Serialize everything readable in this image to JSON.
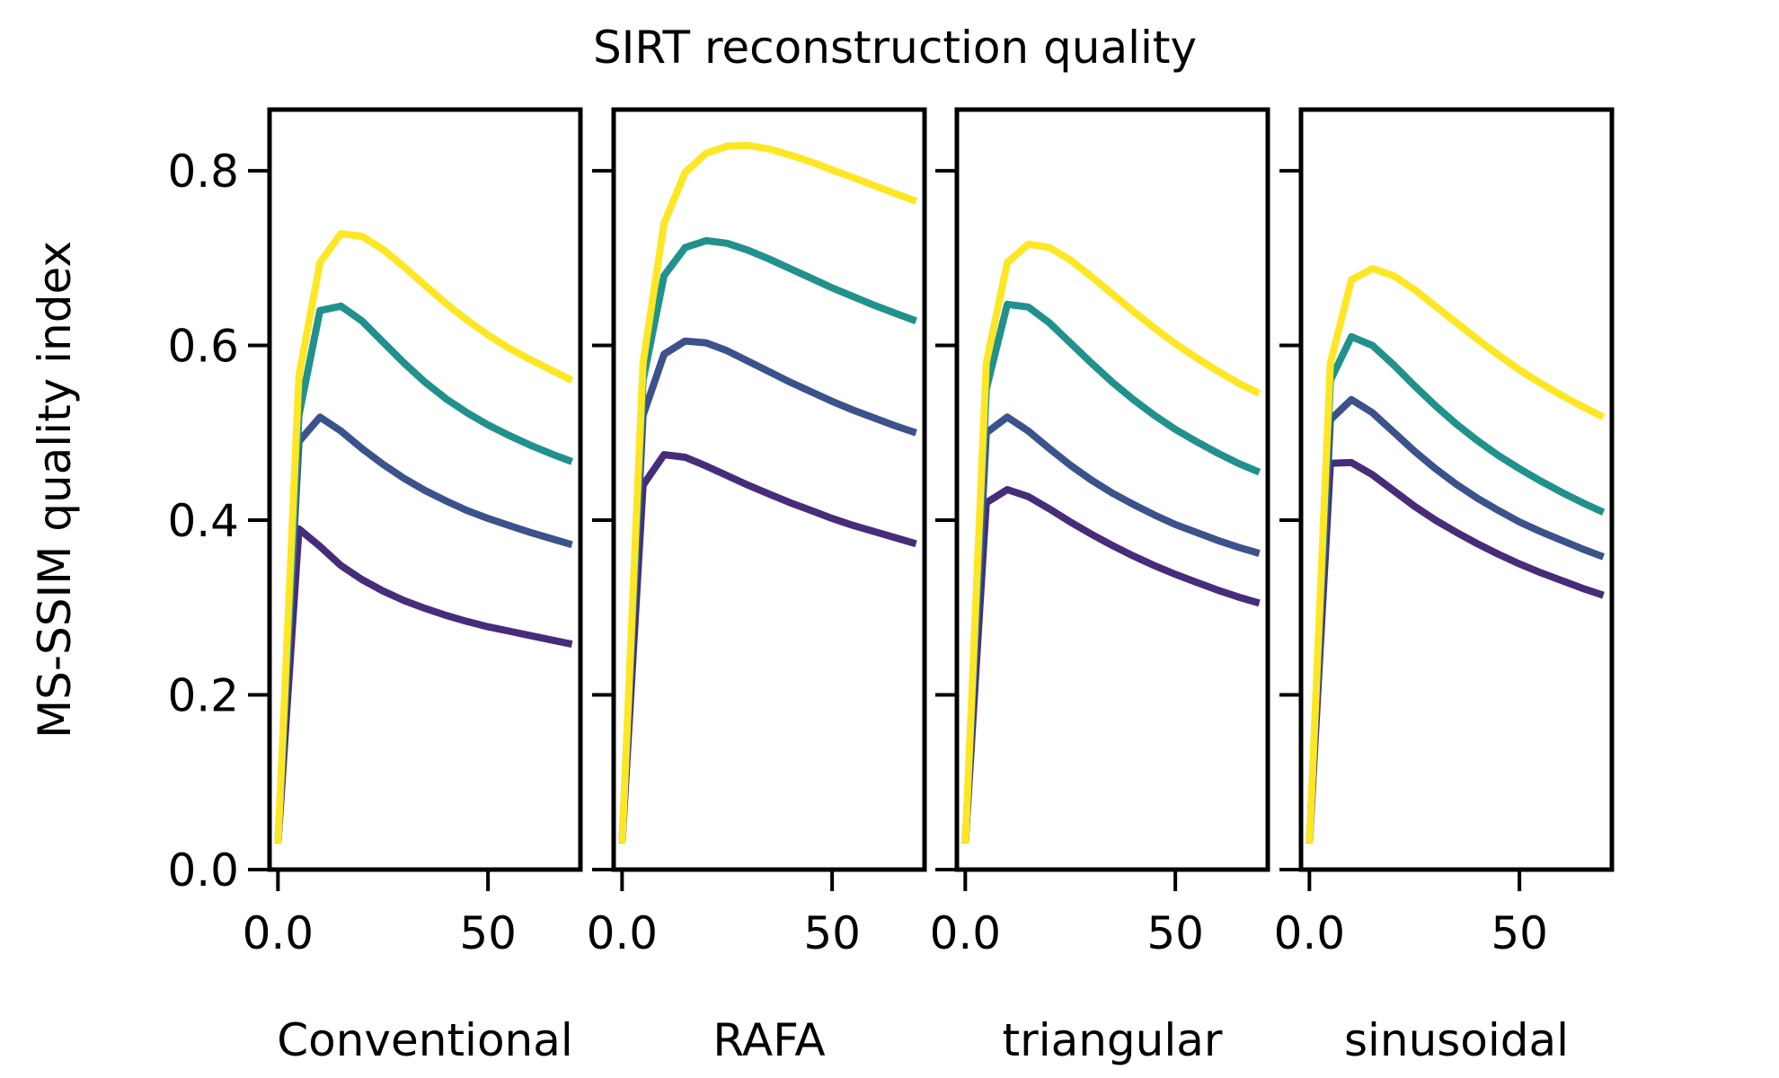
{
  "figure": {
    "title": "SIRT reconstruction quality",
    "ylabel": "MS-SSIM quality index"
  },
  "chart_data": [
    {
      "type": "line",
      "xlabel": "Conventional",
      "ylabel": "MS-SSIM quality index",
      "xlim": [
        -2,
        72
      ],
      "ylim": [
        0,
        0.87
      ],
      "xticks": [
        0,
        50
      ],
      "yticks": [
        0.0,
        0.2,
        0.4,
        0.6,
        0.8
      ],
      "grid": false,
      "x": [
        0,
        5,
        10,
        15,
        20,
        25,
        30,
        35,
        40,
        45,
        50,
        55,
        60,
        65,
        70
      ],
      "series": [
        {
          "color": "#472c7a",
          "values": [
            0.03,
            0.39,
            0.37,
            0.348,
            0.332,
            0.319,
            0.308,
            0.299,
            0.291,
            0.284,
            0.278,
            0.273,
            0.268,
            0.263,
            0.258
          ]
        },
        {
          "color": "#3b528b",
          "values": [
            0.03,
            0.49,
            0.518,
            0.502,
            0.482,
            0.464,
            0.448,
            0.434,
            0.422,
            0.411,
            0.402,
            0.394,
            0.386,
            0.379,
            0.372
          ]
        },
        {
          "color": "#21918c",
          "values": [
            0.03,
            0.52,
            0.64,
            0.645,
            0.628,
            0.604,
            0.58,
            0.558,
            0.539,
            0.523,
            0.509,
            0.497,
            0.486,
            0.476,
            0.467
          ]
        },
        {
          "color": "#fde725",
          "values": [
            0.03,
            0.565,
            0.695,
            0.728,
            0.725,
            0.71,
            0.69,
            0.669,
            0.648,
            0.629,
            0.612,
            0.597,
            0.584,
            0.572,
            0.56
          ]
        }
      ]
    },
    {
      "type": "line",
      "xlabel": "RAFA",
      "xlim": [
        -2,
        72
      ],
      "ylim": [
        0,
        0.87
      ],
      "xticks": [
        0,
        50
      ],
      "grid": false,
      "x": [
        0,
        5,
        10,
        15,
        20,
        25,
        30,
        35,
        40,
        45,
        50,
        55,
        60,
        65,
        70
      ],
      "series": [
        {
          "color": "#472c7a",
          "values": [
            0.03,
            0.44,
            0.475,
            0.472,
            0.462,
            0.451,
            0.44,
            0.43,
            0.42,
            0.411,
            0.402,
            0.394,
            0.387,
            0.38,
            0.373
          ]
        },
        {
          "color": "#3b528b",
          "values": [
            0.03,
            0.52,
            0.59,
            0.605,
            0.603,
            0.594,
            0.582,
            0.57,
            0.558,
            0.547,
            0.536,
            0.526,
            0.517,
            0.508,
            0.5
          ]
        },
        {
          "color": "#21918c",
          "values": [
            0.03,
            0.56,
            0.68,
            0.712,
            0.72,
            0.717,
            0.709,
            0.699,
            0.688,
            0.677,
            0.666,
            0.656,
            0.646,
            0.637,
            0.628
          ]
        },
        {
          "color": "#fde725",
          "values": [
            0.03,
            0.58,
            0.74,
            0.798,
            0.82,
            0.828,
            0.829,
            0.825,
            0.818,
            0.81,
            0.801,
            0.792,
            0.783,
            0.774,
            0.765
          ]
        }
      ]
    },
    {
      "type": "line",
      "xlabel": "triangular",
      "xlim": [
        -2,
        72
      ],
      "ylim": [
        0,
        0.87
      ],
      "xticks": [
        0,
        50
      ],
      "grid": false,
      "x": [
        0,
        5,
        10,
        15,
        20,
        25,
        30,
        35,
        40,
        45,
        50,
        55,
        60,
        65,
        70
      ],
      "series": [
        {
          "color": "#472c7a",
          "values": [
            0.03,
            0.42,
            0.435,
            0.427,
            0.413,
            0.398,
            0.384,
            0.371,
            0.359,
            0.348,
            0.338,
            0.329,
            0.32,
            0.312,
            0.305
          ]
        },
        {
          "color": "#3b528b",
          "values": [
            0.03,
            0.5,
            0.518,
            0.502,
            0.482,
            0.463,
            0.446,
            0.431,
            0.418,
            0.406,
            0.395,
            0.386,
            0.377,
            0.369,
            0.362
          ]
        },
        {
          "color": "#21918c",
          "values": [
            0.03,
            0.55,
            0.647,
            0.644,
            0.626,
            0.603,
            0.58,
            0.558,
            0.538,
            0.52,
            0.504,
            0.49,
            0.477,
            0.465,
            0.455
          ]
        },
        {
          "color": "#fde725",
          "values": [
            0.03,
            0.58,
            0.695,
            0.716,
            0.712,
            0.698,
            0.679,
            0.659,
            0.639,
            0.62,
            0.602,
            0.586,
            0.571,
            0.557,
            0.545
          ]
        }
      ]
    },
    {
      "type": "line",
      "xlabel": "sinusoidal",
      "xlim": [
        -2,
        72
      ],
      "ylim": [
        0,
        0.87
      ],
      "xticks": [
        0,
        50
      ],
      "grid": false,
      "x": [
        0,
        5,
        10,
        15,
        20,
        25,
        30,
        35,
        40,
        45,
        50,
        55,
        60,
        65,
        70
      ],
      "series": [
        {
          "color": "#472c7a",
          "values": [
            0.03,
            0.465,
            0.466,
            0.452,
            0.434,
            0.416,
            0.4,
            0.386,
            0.373,
            0.361,
            0.35,
            0.34,
            0.331,
            0.322,
            0.314
          ]
        },
        {
          "color": "#3b528b",
          "values": [
            0.03,
            0.515,
            0.538,
            0.523,
            0.501,
            0.479,
            0.459,
            0.441,
            0.425,
            0.411,
            0.398,
            0.387,
            0.377,
            0.367,
            0.358
          ]
        },
        {
          "color": "#21918c",
          "values": [
            0.03,
            0.56,
            0.61,
            0.6,
            0.578,
            0.554,
            0.531,
            0.51,
            0.491,
            0.474,
            0.459,
            0.445,
            0.432,
            0.42,
            0.409
          ]
        },
        {
          "color": "#fde725",
          "values": [
            0.03,
            0.58,
            0.675,
            0.688,
            0.68,
            0.664,
            0.645,
            0.626,
            0.607,
            0.589,
            0.572,
            0.557,
            0.543,
            0.53,
            0.518
          ]
        }
      ]
    }
  ]
}
